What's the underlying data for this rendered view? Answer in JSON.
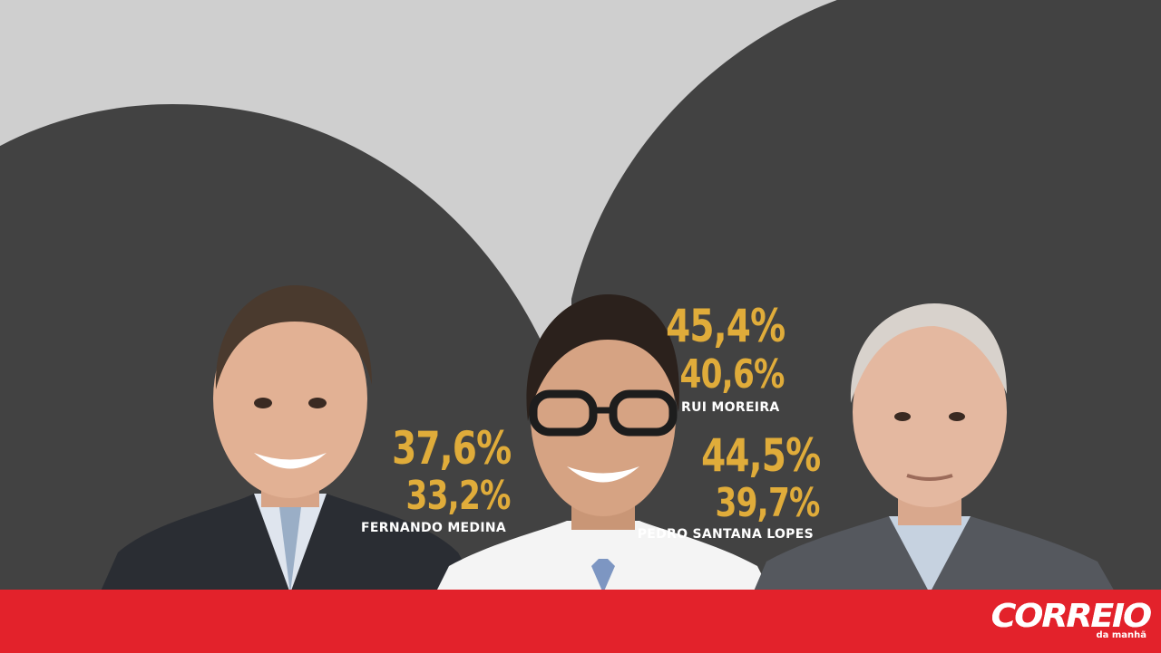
{
  "candidates": [
    {
      "name": "FERNANDO MEDINA",
      "top_value": "37,6%",
      "bottom_value": "33,2%"
    },
    {
      "name": "RUI MOREIRA",
      "top_value": "45,4%",
      "bottom_value": "40,6%"
    },
    {
      "name": "PEDRO SANTANA LOPES",
      "top_value": "44,5%",
      "bottom_value": "39,7%"
    }
  ],
  "brand": {
    "name": "CORREIO",
    "tagline": "da manhã"
  },
  "colors": {
    "background": "#cfcfcf",
    "arch": "#424242",
    "value": "#e0ac3a",
    "footer": "#e3222b"
  },
  "icons": [
    "portrait-medina-icon",
    "portrait-moreira-icon",
    "portrait-santana-lopes-icon"
  ]
}
